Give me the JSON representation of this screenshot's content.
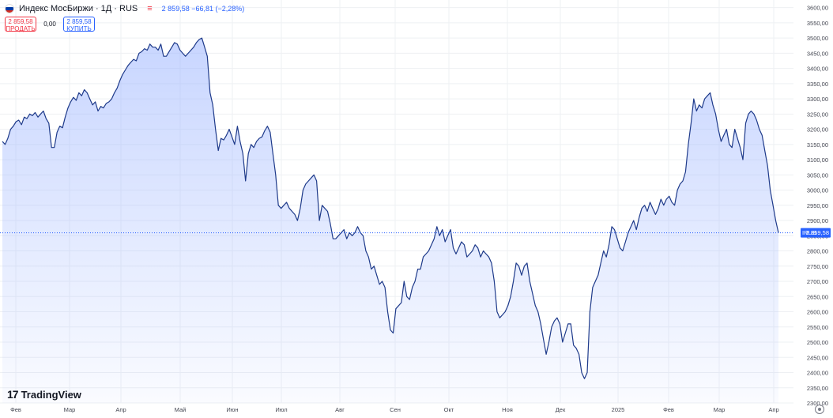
{
  "header": {
    "symbol_title": "Индекс МосБиржи · 1Д · RUS",
    "eq_icon": "≡",
    "last_price": "2 859,58",
    "change": "−66,81 (−2,28%)",
    "flag_colors": [
      "#ffffff",
      "#0039a6",
      "#d52b1e"
    ]
  },
  "trade": {
    "sell_price": "2 859,58",
    "sell_label": "ПРОДАТЬ",
    "spread": "0,00",
    "buy_price": "2 859,58",
    "buy_label": "КУПИТЬ"
  },
  "logo": {
    "mark": "17",
    "text": "TradingView"
  },
  "price_tag": {
    "symbol": "IRUS",
    "value": "2 859,58"
  },
  "colors": {
    "line": "#1e3a8a",
    "area_top": "#9bb4ff",
    "grid": "#eef0f3",
    "price_line": "#2962ff",
    "tag_bg": "#2962ff",
    "axis_text": "#434651"
  },
  "chart_data": {
    "type": "area",
    "title": "Индекс МосБиржи",
    "ylim": [
      2300,
      3625
    ],
    "yticks": [
      2300,
      2350,
      2400,
      2450,
      2500,
      2550,
      2600,
      2650,
      2700,
      2750,
      2800,
      2850,
      2900,
      2950,
      3000,
      3050,
      3100,
      3150,
      3200,
      3250,
      3300,
      3350,
      3400,
      3450,
      3500,
      3550,
      3600
    ],
    "ytick_labels": [
      "2300,00",
      "2350,00",
      "2400,00",
      "2450,00",
      "2500,00",
      "2550,00",
      "2600,00",
      "2650,00",
      "2700,00",
      "2750,00",
      "2800,00",
      "2850,00",
      "2900,00",
      "2950,00",
      "3000,00",
      "3050,00",
      "3100,00",
      "3150,00",
      "3200,00",
      "3250,00",
      "3300,00",
      "3350,00",
      "3400,00",
      "3450,00",
      "3500,00",
      "3550,00",
      "3600,00"
    ],
    "xlabels": [
      "Фев",
      "Мар",
      "Апр",
      "Май",
      "Июн",
      "Июл",
      "Авг",
      "Сен",
      "Окт",
      "Ноя",
      "Дек",
      "2025",
      "Фев",
      "Мар",
      "Апр"
    ],
    "last_value": 2859.58,
    "series": [
      {
        "values": [
          3160,
          3150,
          3170,
          3200,
          3210,
          3225,
          3230,
          3215,
          3240,
          3235,
          3250,
          3245,
          3255,
          3240,
          3250,
          3260,
          3235,
          3220,
          3140,
          3140,
          3190,
          3210,
          3205,
          3240,
          3270,
          3290,
          3305,
          3295,
          3320,
          3310,
          3330,
          3320,
          3300,
          3280,
          3290,
          3260,
          3275,
          3270,
          3285,
          3290,
          3300,
          3320,
          3335,
          3360,
          3380,
          3395,
          3410,
          3420,
          3430,
          3425,
          3450,
          3455,
          3465,
          3460,
          3480,
          3470,
          3470,
          3460,
          3480,
          3440,
          3440,
          3455,
          3470,
          3485,
          3480,
          3460,
          3450,
          3440,
          3450,
          3460,
          3470,
          3485,
          3495,
          3500,
          3470,
          3440,
          3320,
          3280,
          3200,
          3130,
          3170,
          3165,
          3180,
          3200,
          3175,
          3150,
          3210,
          3160,
          3120,
          3030,
          3120,
          3150,
          3140,
          3160,
          3170,
          3175,
          3195,
          3210,
          3190,
          3120,
          3050,
          2950,
          2940,
          2950,
          2960,
          2940,
          2930,
          2920,
          2900,
          2940,
          3000,
          3020,
          3030,
          3040,
          3050,
          3030,
          2900,
          2950,
          2940,
          2930,
          2890,
          2840,
          2840,
          2850,
          2860,
          2870,
          2840,
          2860,
          2850,
          2860,
          2880,
          2860,
          2850,
          2800,
          2780,
          2740,
          2750,
          2720,
          2690,
          2700,
          2680,
          2600,
          2540,
          2530,
          2610,
          2620,
          2630,
          2700,
          2650,
          2640,
          2680,
          2700,
          2740,
          2740,
          2780,
          2790,
          2800,
          2820,
          2840,
          2880,
          2850,
          2870,
          2830,
          2850,
          2870,
          2810,
          2790,
          2810,
          2830,
          2820,
          2780,
          2790,
          2800,
          2820,
          2810,
          2780,
          2800,
          2790,
          2780,
          2760,
          2700,
          2600,
          2580,
          2590,
          2600,
          2620,
          2650,
          2700,
          2760,
          2750,
          2720,
          2750,
          2760,
          2700,
          2660,
          2620,
          2600,
          2560,
          2510,
          2460,
          2500,
          2550,
          2570,
          2580,
          2560,
          2500,
          2530,
          2560,
          2560,
          2490,
          2480,
          2460,
          2400,
          2380,
          2400,
          2600,
          2680,
          2700,
          2720,
          2760,
          2800,
          2780,
          2820,
          2880,
          2870,
          2840,
          2810,
          2800,
          2830,
          2860,
          2880,
          2900,
          2870,
          2910,
          2940,
          2950,
          2930,
          2960,
          2940,
          2920,
          2940,
          2970,
          2950,
          2970,
          2980,
          2960,
          2950,
          3000,
          3020,
          3030,
          3060,
          3150,
          3220,
          3300,
          3260,
          3280,
          3270,
          3300,
          3310,
          3320,
          3280,
          3250,
          3200,
          3160,
          3180,
          3200,
          3150,
          3140,
          3200,
          3170,
          3140,
          3100,
          3220,
          3250,
          3260,
          3250,
          3230,
          3200,
          3180,
          3130,
          3080,
          3000,
          2950,
          2900,
          2859.58
        ]
      }
    ]
  }
}
